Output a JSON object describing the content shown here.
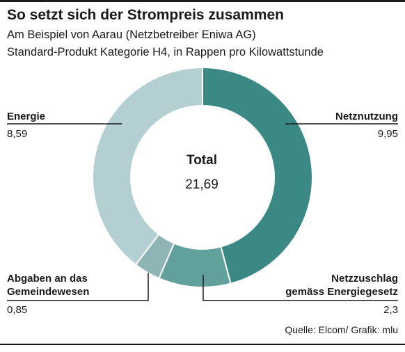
{
  "header": {
    "title": "So setzt sich der Strompreis zusammen",
    "subtitle_1": "Am Beispiel von Aarau (Netzbetreiber Eniwa AG)",
    "subtitle_2": "Standard-Produkt Kategorie H4, in Rappen pro Kilowattstunde"
  },
  "center": {
    "label": "Total",
    "value": "21,69"
  },
  "labels": {
    "netz_name": "Netznutzung",
    "netz_value": "9,95",
    "energie_name": "Energie",
    "energie_value": "8,59",
    "zuschlag_name_1": "Netzzuschlag",
    "zuschlag_name_2": "gemäss Energiegesetz",
    "zuschlag_value": "2,3",
    "abgaben_name_1": "Abgaben an das",
    "abgaben_name_2": "Gemeindewesen",
    "abgaben_value": "0,85"
  },
  "footer": {
    "source": "Quelle: Elcom/ Grafik: mlu"
  },
  "chart_data": {
    "type": "pie",
    "donut": true,
    "title": "So setzt sich der Strompreis zusammen",
    "total": 21.69,
    "slices": [
      {
        "name": "Netznutzung",
        "value": 9.95,
        "color": "#3a8985"
      },
      {
        "name": "Netzzuschlag gemäss Energiegesetz",
        "value": 2.3,
        "color": "#62a09c"
      },
      {
        "name": "Abgaben an das Gemeindewesen",
        "value": 0.85,
        "color": "#8fb4b6"
      },
      {
        "name": "Energie",
        "value": 8.59,
        "color": "#b3cfd1"
      }
    ]
  }
}
